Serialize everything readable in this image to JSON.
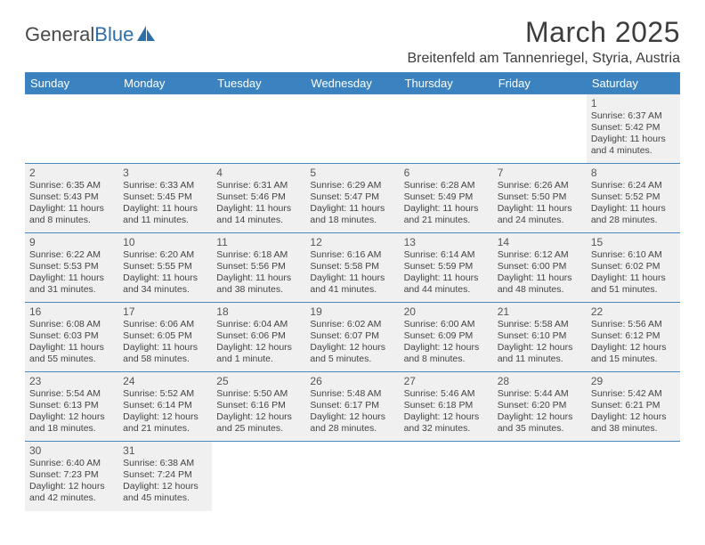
{
  "logo": {
    "text1": "General",
    "text2": "Blue",
    "sail_color": "#2f6fa8"
  },
  "title": "March 2025",
  "subtitle": "Breitenfeld am Tannenriegel, Styria, Austria",
  "colors": {
    "header_bg": "#3b83c0",
    "header_text": "#ffffff",
    "rule": "#4a89c0",
    "cell_shade": "#f0f0f0",
    "page_bg": "#ffffff",
    "text": "#3d3d3d"
  },
  "day_headers": [
    "Sunday",
    "Monday",
    "Tuesday",
    "Wednesday",
    "Thursday",
    "Friday",
    "Saturday"
  ],
  "weeks": [
    [
      null,
      null,
      null,
      null,
      null,
      null,
      {
        "n": "1",
        "sunrise": "6:37 AM",
        "sunset": "5:42 PM",
        "daylight": "11 hours and 4 minutes."
      }
    ],
    [
      {
        "n": "2",
        "sunrise": "6:35 AM",
        "sunset": "5:43 PM",
        "daylight": "11 hours and 8 minutes."
      },
      {
        "n": "3",
        "sunrise": "6:33 AM",
        "sunset": "5:45 PM",
        "daylight": "11 hours and 11 minutes."
      },
      {
        "n": "4",
        "sunrise": "6:31 AM",
        "sunset": "5:46 PM",
        "daylight": "11 hours and 14 minutes."
      },
      {
        "n": "5",
        "sunrise": "6:29 AM",
        "sunset": "5:47 PM",
        "daylight": "11 hours and 18 minutes."
      },
      {
        "n": "6",
        "sunrise": "6:28 AM",
        "sunset": "5:49 PM",
        "daylight": "11 hours and 21 minutes."
      },
      {
        "n": "7",
        "sunrise": "6:26 AM",
        "sunset": "5:50 PM",
        "daylight": "11 hours and 24 minutes."
      },
      {
        "n": "8",
        "sunrise": "6:24 AM",
        "sunset": "5:52 PM",
        "daylight": "11 hours and 28 minutes."
      }
    ],
    [
      {
        "n": "9",
        "sunrise": "6:22 AM",
        "sunset": "5:53 PM",
        "daylight": "11 hours and 31 minutes."
      },
      {
        "n": "10",
        "sunrise": "6:20 AM",
        "sunset": "5:55 PM",
        "daylight": "11 hours and 34 minutes."
      },
      {
        "n": "11",
        "sunrise": "6:18 AM",
        "sunset": "5:56 PM",
        "daylight": "11 hours and 38 minutes."
      },
      {
        "n": "12",
        "sunrise": "6:16 AM",
        "sunset": "5:58 PM",
        "daylight": "11 hours and 41 minutes."
      },
      {
        "n": "13",
        "sunrise": "6:14 AM",
        "sunset": "5:59 PM",
        "daylight": "11 hours and 44 minutes."
      },
      {
        "n": "14",
        "sunrise": "6:12 AM",
        "sunset": "6:00 PM",
        "daylight": "11 hours and 48 minutes."
      },
      {
        "n": "15",
        "sunrise": "6:10 AM",
        "sunset": "6:02 PM",
        "daylight": "11 hours and 51 minutes."
      }
    ],
    [
      {
        "n": "16",
        "sunrise": "6:08 AM",
        "sunset": "6:03 PM",
        "daylight": "11 hours and 55 minutes."
      },
      {
        "n": "17",
        "sunrise": "6:06 AM",
        "sunset": "6:05 PM",
        "daylight": "11 hours and 58 minutes."
      },
      {
        "n": "18",
        "sunrise": "6:04 AM",
        "sunset": "6:06 PM",
        "daylight": "12 hours and 1 minute."
      },
      {
        "n": "19",
        "sunrise": "6:02 AM",
        "sunset": "6:07 PM",
        "daylight": "12 hours and 5 minutes."
      },
      {
        "n": "20",
        "sunrise": "6:00 AM",
        "sunset": "6:09 PM",
        "daylight": "12 hours and 8 minutes."
      },
      {
        "n": "21",
        "sunrise": "5:58 AM",
        "sunset": "6:10 PM",
        "daylight": "12 hours and 11 minutes."
      },
      {
        "n": "22",
        "sunrise": "5:56 AM",
        "sunset": "6:12 PM",
        "daylight": "12 hours and 15 minutes."
      }
    ],
    [
      {
        "n": "23",
        "sunrise": "5:54 AM",
        "sunset": "6:13 PM",
        "daylight": "12 hours and 18 minutes."
      },
      {
        "n": "24",
        "sunrise": "5:52 AM",
        "sunset": "6:14 PM",
        "daylight": "12 hours and 21 minutes."
      },
      {
        "n": "25",
        "sunrise": "5:50 AM",
        "sunset": "6:16 PM",
        "daylight": "12 hours and 25 minutes."
      },
      {
        "n": "26",
        "sunrise": "5:48 AM",
        "sunset": "6:17 PM",
        "daylight": "12 hours and 28 minutes."
      },
      {
        "n": "27",
        "sunrise": "5:46 AM",
        "sunset": "6:18 PM",
        "daylight": "12 hours and 32 minutes."
      },
      {
        "n": "28",
        "sunrise": "5:44 AM",
        "sunset": "6:20 PM",
        "daylight": "12 hours and 35 minutes."
      },
      {
        "n": "29",
        "sunrise": "5:42 AM",
        "sunset": "6:21 PM",
        "daylight": "12 hours and 38 minutes."
      }
    ],
    [
      {
        "n": "30",
        "sunrise": "6:40 AM",
        "sunset": "7:23 PM",
        "daylight": "12 hours and 42 minutes."
      },
      {
        "n": "31",
        "sunrise": "6:38 AM",
        "sunset": "7:24 PM",
        "daylight": "12 hours and 45 minutes."
      },
      null,
      null,
      null,
      null,
      null
    ]
  ],
  "labels": {
    "sunrise": "Sunrise: ",
    "sunset": "Sunset: ",
    "daylight": "Daylight: "
  }
}
